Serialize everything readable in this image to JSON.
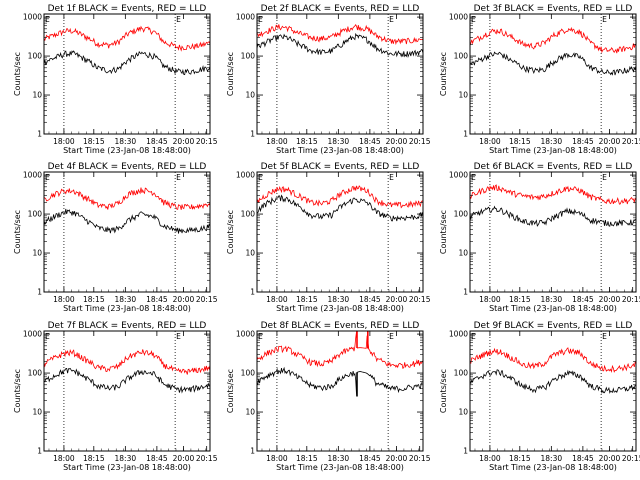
{
  "chart_data": [
    {
      "type": "line",
      "title": "Det 1f BLACK = Events, RED = LLD",
      "xlabel": "Start Time (23-Jan-08 18:48:00)",
      "ylabel": "Counts/sec",
      "y_scale": "log",
      "ylim": [
        1,
        1200
      ],
      "x_tick_labels": [
        "18:00",
        "18:15",
        "18:30",
        "18:45",
        "20:00",
        "20:15"
      ],
      "y_tick_labels": [
        "1",
        "10",
        "100",
        "1000"
      ],
      "markers": [
        "E",
        "E"
      ],
      "series": [
        {
          "color": "#ff0000",
          "x": [
            0,
            0.06,
            0.13,
            0.18,
            0.24,
            0.32,
            0.39,
            0.45,
            0.51,
            0.59,
            0.66,
            0.72,
            0.8,
            0.88,
            0.95,
            1
          ],
          "y": [
            270,
            340,
            440,
            440,
            330,
            210,
            190,
            230,
            380,
            520,
            430,
            230,
            170,
            170,
            190,
            220
          ]
        },
        {
          "color": "#000000",
          "x": [
            0,
            0.06,
            0.13,
            0.18,
            0.24,
            0.32,
            0.39,
            0.45,
            0.51,
            0.59,
            0.66,
            0.72,
            0.8,
            0.88,
            0.95,
            1
          ],
          "y": [
            70,
            88,
            115,
            115,
            85,
            50,
            42,
            47,
            80,
            118,
            100,
            55,
            40,
            40,
            46,
            52
          ]
        }
      ]
    },
    {
      "type": "line",
      "title": "Det 2f BLACK = Events, RED = LLD",
      "xlabel": "Start Time (23-Jan-08 18:48:00)",
      "ylabel": "Counts/sec",
      "y_scale": "log",
      "ylim": [
        1,
        1200
      ],
      "x_tick_labels": [
        "18:00",
        "18:15",
        "18:30",
        "18:45",
        "20:00",
        "20:15"
      ],
      "y_tick_labels": [
        "1",
        "10",
        "100",
        "1000"
      ],
      "markers": [
        "E",
        "E"
      ],
      "series": [
        {
          "color": "#ff0000",
          "x": [
            0,
            0.06,
            0.13,
            0.18,
            0.24,
            0.32,
            0.39,
            0.45,
            0.51,
            0.59,
            0.66,
            0.72,
            0.8,
            0.88,
            0.95,
            1
          ],
          "y": [
            340,
            440,
            560,
            540,
            400,
            300,
            280,
            310,
            420,
            580,
            500,
            330,
            240,
            240,
            250,
            280
          ]
        },
        {
          "color": "#000000",
          "x": [
            0,
            0.06,
            0.13,
            0.18,
            0.24,
            0.32,
            0.39,
            0.45,
            0.51,
            0.59,
            0.66,
            0.72,
            0.8,
            0.88,
            0.95,
            1
          ],
          "y": [
            170,
            230,
            310,
            300,
            210,
            140,
            125,
            135,
            200,
            320,
            270,
            160,
            115,
            115,
            120,
            135
          ]
        }
      ]
    },
    {
      "type": "line",
      "title": "Det 3f BLACK = Events, RED = LLD",
      "xlabel": "Start Time (23-Jan-08 18:48:00)",
      "ylabel": "Counts/sec",
      "y_scale": "log",
      "ylim": [
        1,
        1200
      ],
      "x_tick_labels": [
        "18:00",
        "18:15",
        "18:30",
        "18:45",
        "20:00",
        "20:15"
      ],
      "y_tick_labels": [
        "1",
        "10",
        "100",
        "1000"
      ],
      "markers": [
        "E",
        "E"
      ],
      "series": [
        {
          "color": "#ff0000",
          "x": [
            0,
            0.06,
            0.13,
            0.18,
            0.24,
            0.32,
            0.39,
            0.45,
            0.51,
            0.59,
            0.66,
            0.72,
            0.8,
            0.88,
            0.95,
            1
          ],
          "y": [
            220,
            300,
            430,
            450,
            320,
            200,
            180,
            220,
            350,
            500,
            420,
            220,
            140,
            140,
            160,
            190
          ]
        },
        {
          "color": "#000000",
          "x": [
            0,
            0.06,
            0.13,
            0.18,
            0.24,
            0.32,
            0.39,
            0.45,
            0.51,
            0.59,
            0.66,
            0.72,
            0.8,
            0.88,
            0.95,
            1
          ],
          "y": [
            60,
            80,
            110,
            115,
            80,
            50,
            42,
            46,
            75,
            110,
            95,
            52,
            38,
            38,
            44,
            50
          ]
        }
      ]
    },
    {
      "type": "line",
      "title": "Det 4f BLACK = Events, RED = LLD",
      "xlabel": "Start Time (23-Jan-08 18:48:00)",
      "ylabel": "Counts/sec",
      "y_scale": "log",
      "ylim": [
        1,
        1200
      ],
      "x_tick_labels": [
        "18:00",
        "18:15",
        "18:30",
        "18:45",
        "20:00",
        "20:15"
      ],
      "y_tick_labels": [
        "1",
        "10",
        "100",
        "1000"
      ],
      "markers": [
        "E",
        "E"
      ],
      "series": [
        {
          "color": "#ff0000",
          "x": [
            0,
            0.06,
            0.13,
            0.18,
            0.24,
            0.32,
            0.39,
            0.45,
            0.51,
            0.59,
            0.66,
            0.72,
            0.8,
            0.88,
            0.95,
            1
          ],
          "y": [
            230,
            320,
            400,
            390,
            280,
            170,
            155,
            190,
            330,
            420,
            360,
            200,
            150,
            150,
            165,
            190
          ]
        },
        {
          "color": "#000000",
          "x": [
            0,
            0.06,
            0.13,
            0.18,
            0.24,
            0.32,
            0.39,
            0.45,
            0.51,
            0.59,
            0.66,
            0.72,
            0.8,
            0.88,
            0.95,
            1
          ],
          "y": [
            60,
            85,
            115,
            110,
            75,
            45,
            38,
            42,
            70,
            100,
            85,
            50,
            38,
            38,
            42,
            48
          ]
        }
      ]
    },
    {
      "type": "line",
      "title": "Det 5f BLACK = Events, RED = LLD",
      "xlabel": "Start Time (23-Jan-08 18:48:00)",
      "ylabel": "Counts/sec",
      "y_scale": "log",
      "ylim": [
        1,
        1200
      ],
      "x_tick_labels": [
        "18:00",
        "18:15",
        "18:30",
        "18:45",
        "20:00",
        "20:15"
      ],
      "y_tick_labels": [
        "1",
        "10",
        "100",
        "1000"
      ],
      "markers": [
        "E",
        "E"
      ],
      "series": [
        {
          "color": "#ff0000",
          "x": [
            0,
            0.06,
            0.13,
            0.18,
            0.24,
            0.32,
            0.39,
            0.45,
            0.51,
            0.59,
            0.66,
            0.72,
            0.8,
            0.88,
            0.95,
            1
          ],
          "y": [
            200,
            320,
            450,
            430,
            310,
            200,
            185,
            220,
            340,
            480,
            410,
            220,
            170,
            170,
            180,
            200
          ]
        },
        {
          "color": "#000000",
          "x": [
            0,
            0.06,
            0.13,
            0.18,
            0.24,
            0.32,
            0.39,
            0.45,
            0.51,
            0.59,
            0.66,
            0.72,
            0.8,
            0.88,
            0.95,
            1
          ],
          "y": [
            120,
            190,
            260,
            250,
            170,
            95,
            85,
            95,
            160,
            240,
            200,
            110,
            80,
            80,
            85,
            95
          ]
        }
      ]
    },
    {
      "type": "line",
      "title": "Det 6f BLACK = Events, RED = LLD",
      "xlabel": "Start Time (23-Jan-08 18:48:00)",
      "ylabel": "Counts/sec",
      "y_scale": "log",
      "ylim": [
        1,
        1200
      ],
      "x_tick_labels": [
        "18:00",
        "18:15",
        "18:30",
        "18:45",
        "20:00",
        "20:15"
      ],
      "y_tick_labels": [
        "1",
        "10",
        "100",
        "1000"
      ],
      "markers": [
        "E",
        "E"
      ],
      "series": [
        {
          "color": "#ff0000",
          "x": [
            0,
            0.06,
            0.13,
            0.18,
            0.24,
            0.32,
            0.39,
            0.45,
            0.51,
            0.59,
            0.66,
            0.72,
            0.8,
            0.88,
            0.95,
            1
          ],
          "y": [
            280,
            380,
            480,
            470,
            360,
            290,
            270,
            290,
            360,
            460,
            410,
            280,
            220,
            215,
            220,
            240
          ]
        },
        {
          "color": "#000000",
          "x": [
            0,
            0.06,
            0.13,
            0.18,
            0.24,
            0.32,
            0.39,
            0.45,
            0.51,
            0.59,
            0.66,
            0.72,
            0.8,
            0.88,
            0.95,
            1
          ],
          "y": [
            85,
            110,
            135,
            130,
            95,
            65,
            58,
            60,
            85,
            120,
            105,
            72,
            60,
            58,
            60,
            64
          ]
        }
      ]
    },
    {
      "type": "line",
      "title": "Det 7f BLACK = Events, RED = LLD",
      "xlabel": "Start Time (23-Jan-08 18:48:00)",
      "ylabel": "Counts/sec",
      "y_scale": "log",
      "ylim": [
        1,
        1200
      ],
      "x_tick_labels": [
        "18:00",
        "18:15",
        "18:30",
        "18:45",
        "20:00",
        "20:15"
      ],
      "y_tick_labels": [
        "1",
        "10",
        "100",
        "1000"
      ],
      "markers": [
        "E",
        "E"
      ],
      "series": [
        {
          "color": "#ff0000",
          "x": [
            0,
            0.06,
            0.13,
            0.18,
            0.24,
            0.32,
            0.39,
            0.45,
            0.51,
            0.59,
            0.66,
            0.72,
            0.8,
            0.88,
            0.95,
            1
          ],
          "y": [
            170,
            240,
            330,
            330,
            230,
            140,
            125,
            150,
            260,
            350,
            300,
            160,
            110,
            110,
            125,
            140
          ]
        },
        {
          "color": "#000000",
          "x": [
            0,
            0.06,
            0.13,
            0.18,
            0.24,
            0.32,
            0.39,
            0.45,
            0.51,
            0.59,
            0.66,
            0.72,
            0.8,
            0.88,
            0.95,
            1
          ],
          "y": [
            60,
            85,
            115,
            115,
            80,
            48,
            40,
            45,
            75,
            110,
            95,
            52,
            38,
            38,
            44,
            50
          ]
        }
      ]
    },
    {
      "type": "line",
      "title": "Det 8f BLACK = Events, RED = LLD",
      "xlabel": "Start Time (23-Jan-08 18:48:00)",
      "ylabel": "Counts/sec",
      "y_scale": "log",
      "ylim": [
        1,
        1200
      ],
      "x_tick_labels": [
        "18:00",
        "18:15",
        "18:30",
        "18:45",
        "20:00",
        "20:15"
      ],
      "y_tick_labels": [
        "1",
        "10",
        "100",
        "1000"
      ],
      "markers": [
        "E",
        "E"
      ],
      "series": [
        {
          "color": "#ff0000",
          "x": [
            0,
            0.06,
            0.13,
            0.18,
            0.24,
            0.32,
            0.39,
            0.45,
            0.51,
            0.59,
            0.6,
            0.605,
            0.62,
            0.66,
            0.665,
            0.67,
            0.72,
            0.8,
            0.88,
            0.95,
            1
          ],
          "y": [
            220,
            320,
            420,
            420,
            300,
            190,
            170,
            200,
            330,
            440,
            1200,
            440,
            450,
            430,
            1200,
            420,
            230,
            160,
            160,
            175,
            200
          ]
        },
        {
          "color": "#000000",
          "x": [
            0,
            0.06,
            0.13,
            0.18,
            0.24,
            0.32,
            0.39,
            0.45,
            0.51,
            0.59,
            0.6,
            0.605,
            0.62,
            0.66,
            0.72,
            0.8,
            0.88,
            0.95,
            1
          ],
          "y": [
            60,
            85,
            115,
            115,
            80,
            48,
            42,
            46,
            75,
            105,
            25,
            105,
            110,
            100,
            55,
            40,
            40,
            45,
            50
          ]
        }
      ]
    },
    {
      "type": "line",
      "title": "Det 9f BLACK = Events, RED = LLD",
      "xlabel": "Start Time (23-Jan-08 18:48:00)",
      "ylabel": "Counts/sec",
      "y_scale": "log",
      "ylim": [
        1,
        1200
      ],
      "x_tick_labels": [
        "18:00",
        "18:15",
        "18:30",
        "18:45",
        "20:00",
        "20:15"
      ],
      "y_tick_labels": [
        "1",
        "10",
        "100",
        "1000"
      ],
      "markers": [
        "E",
        "E"
      ],
      "series": [
        {
          "color": "#ff0000",
          "x": [
            0,
            0.06,
            0.13,
            0.18,
            0.24,
            0.32,
            0.39,
            0.45,
            0.51,
            0.59,
            0.66,
            0.72,
            0.8,
            0.88,
            0.95,
            1
          ],
          "y": [
            200,
            270,
            360,
            360,
            260,
            160,
            150,
            180,
            300,
            380,
            330,
            180,
            130,
            130,
            145,
            165
          ]
        },
        {
          "color": "#000000",
          "x": [
            0,
            0.06,
            0.13,
            0.18,
            0.24,
            0.32,
            0.39,
            0.45,
            0.51,
            0.59,
            0.66,
            0.72,
            0.8,
            0.88,
            0.95,
            1
          ],
          "y": [
            55,
            80,
            105,
            105,
            75,
            45,
            38,
            42,
            70,
            100,
            85,
            48,
            36,
            36,
            40,
            46
          ]
        }
      ]
    }
  ]
}
